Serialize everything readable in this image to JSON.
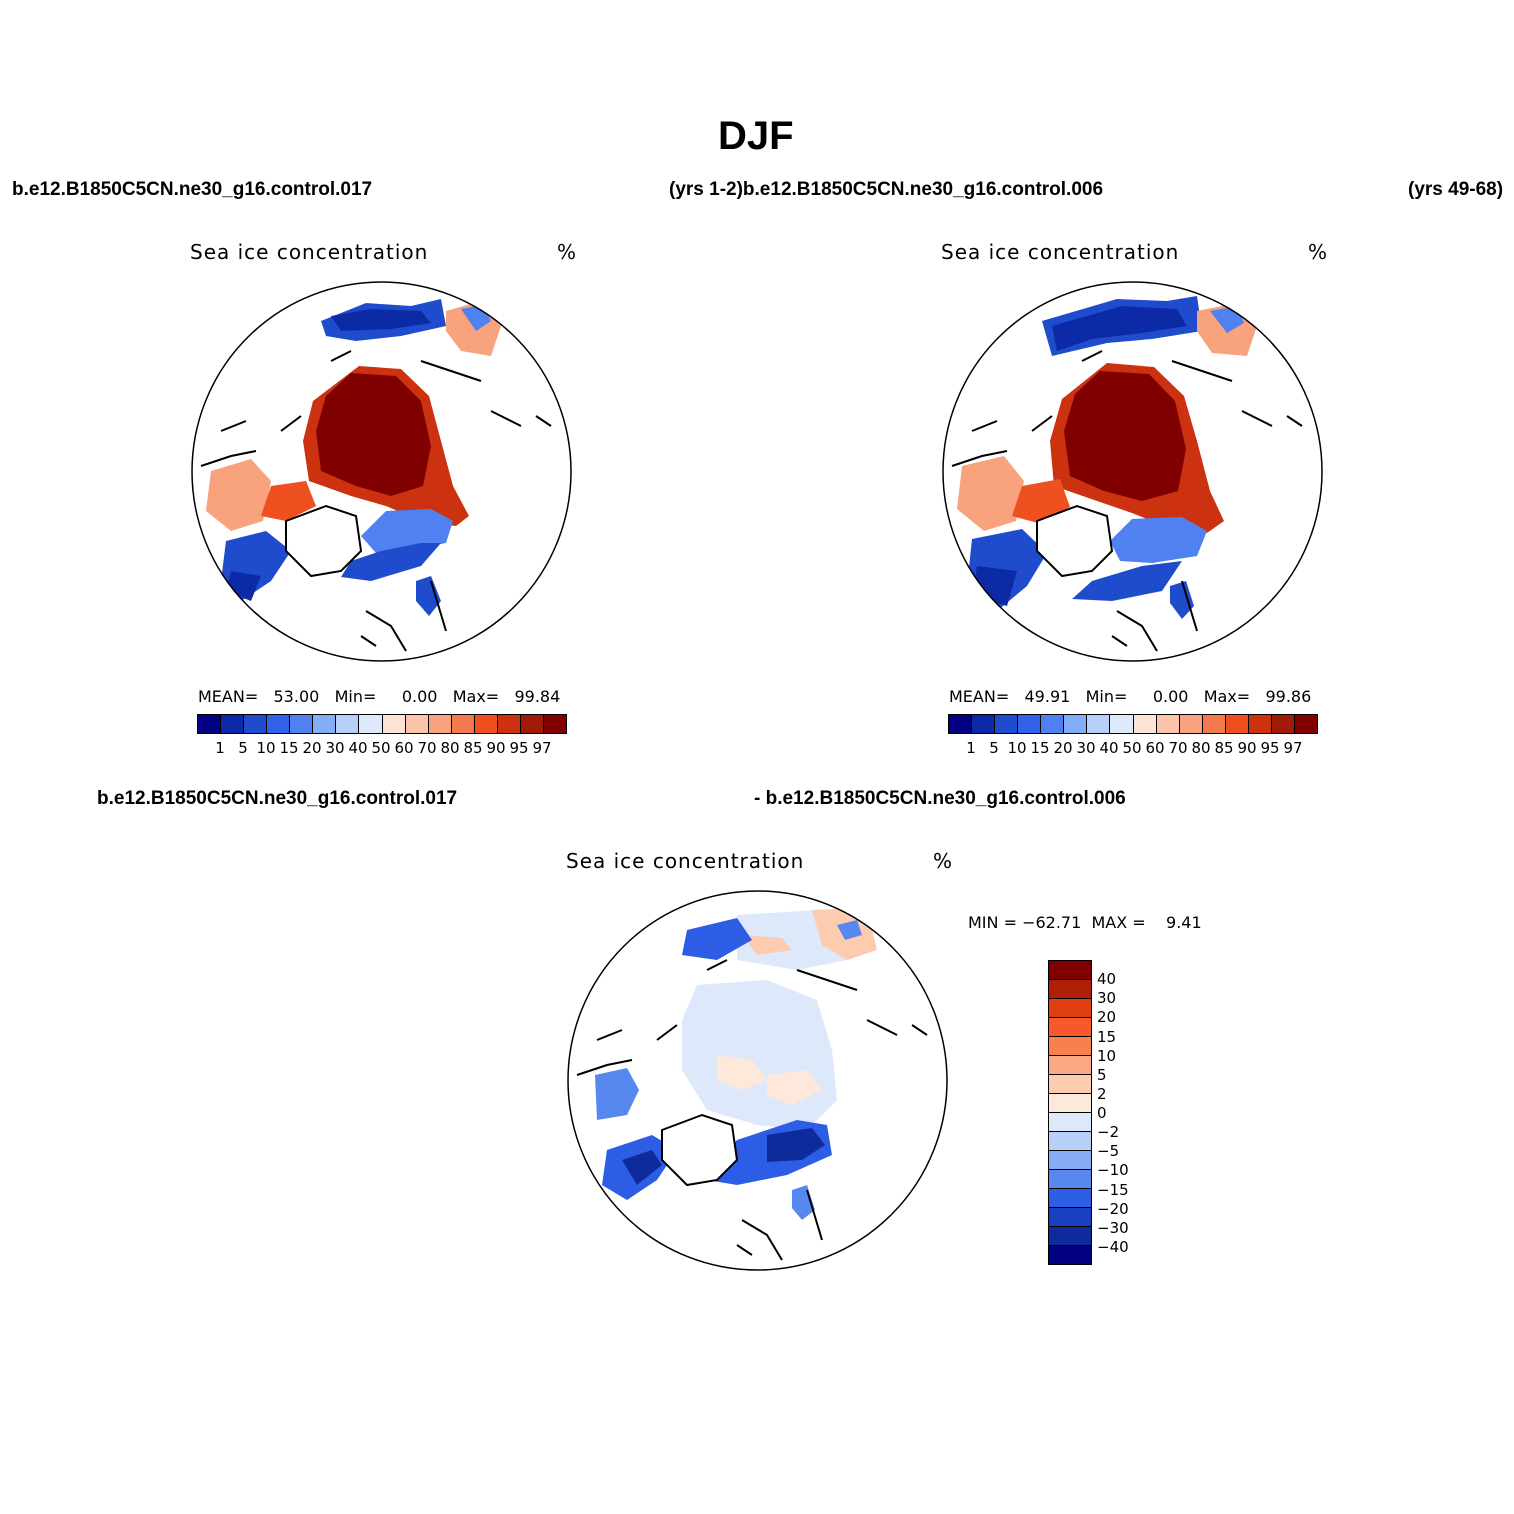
{
  "figure": {
    "title": "DJF",
    "top_left_case": "b.e12.B1850C5CN.ne30_g16.control.017",
    "top_mid_case": "(yrs 1-2)b.e12.B1850C5CN.ne30_g16.control.006",
    "top_right_case": "(yrs 49-68)",
    "bottom_left_case": "b.e12.B1850C5CN.ne30_g16.control.017",
    "bottom_mid_case": "- b.e12.B1850C5CN.ne30_g16.control.006"
  },
  "panels": {
    "left": {
      "title": "Sea ice concentration",
      "units": "%",
      "stats": {
        "mean_label": "MEAN=",
        "mean": "53.00",
        "min_label": "Min=",
        "min": "0.00",
        "max_label": "Max=",
        "max": "99.84"
      }
    },
    "right": {
      "title": "Sea ice concentration",
      "units": "%",
      "stats": {
        "mean_label": "MEAN=",
        "mean": "49.91",
        "min_label": "Min=",
        "min": "0.00",
        "max_label": "Max=",
        "max": "99.86"
      }
    },
    "diff": {
      "title": "Sea ice concentration",
      "units": "%",
      "stats": {
        "min_label": "MIN =",
        "min": "−62.71",
        "max_label": "MAX =",
        "max": "9.41"
      }
    }
  },
  "colorbar_abs": {
    "labels": [
      "1",
      "5",
      "10",
      "15",
      "20",
      "30",
      "40",
      "50",
      "60",
      "70",
      "80",
      "85",
      "90",
      "95",
      "97"
    ],
    "colors": [
      "#000080",
      "#0c2aa6",
      "#1f4ccc",
      "#2f62e6",
      "#4f82f0",
      "#84aef4",
      "#b7d0f8",
      "#deeafc",
      "#fde3d3",
      "#fbc4a8",
      "#f8a27e",
      "#f4784e",
      "#ee5020",
      "#cc3210",
      "#a01c08",
      "#800000"
    ]
  },
  "colorbar_diff": {
    "labels": [
      "40",
      "30",
      "20",
      "15",
      "10",
      "5",
      "2",
      "0",
      "−2",
      "−5",
      "−10",
      "−15",
      "−20",
      "−30",
      "−40"
    ],
    "colors": [
      "#800000",
      "#b01e08",
      "#e04010",
      "#f8582a",
      "#f8804c",
      "#fba884",
      "#fccbb0",
      "#fde8da",
      "#dde9fb",
      "#b8d0f8",
      "#88abf3",
      "#5788ef",
      "#2c5de4",
      "#1a3fbf",
      "#0e2b9c",
      "#000080"
    ]
  },
  "chart_data": [
    {
      "type": "heatmap",
      "title": "Sea ice concentration",
      "subtitle": "b.e12.B1850C5CN.ne30_g16.control.017 (yrs 1-2)",
      "units": "%",
      "mean": 53.0,
      "min": 0.0,
      "max": 99.84,
      "levels": [
        1,
        5,
        10,
        15,
        20,
        30,
        40,
        50,
        60,
        70,
        80,
        85,
        90,
        95,
        97
      ]
    },
    {
      "type": "heatmap",
      "title": "Sea ice concentration",
      "subtitle": "b.e12.B1850C5CN.ne30_g16.control.006 (yrs 49-68)",
      "units": "%",
      "mean": 49.91,
      "min": 0.0,
      "max": 99.86,
      "levels": [
        1,
        5,
        10,
        15,
        20,
        30,
        40,
        50,
        60,
        70,
        80,
        85,
        90,
        95,
        97
      ]
    },
    {
      "type": "heatmap",
      "title": "Sea ice concentration",
      "subtitle": "b.e12.B1850C5CN.ne30_g16.control.017 - b.e12.B1850C5CN.ne30_g16.control.006",
      "units": "%",
      "min": -62.71,
      "max": 9.41,
      "levels": [
        -40,
        -30,
        -20,
        -15,
        -10,
        -5,
        -2,
        0,
        2,
        5,
        10,
        15,
        20,
        30,
        40
      ]
    }
  ]
}
